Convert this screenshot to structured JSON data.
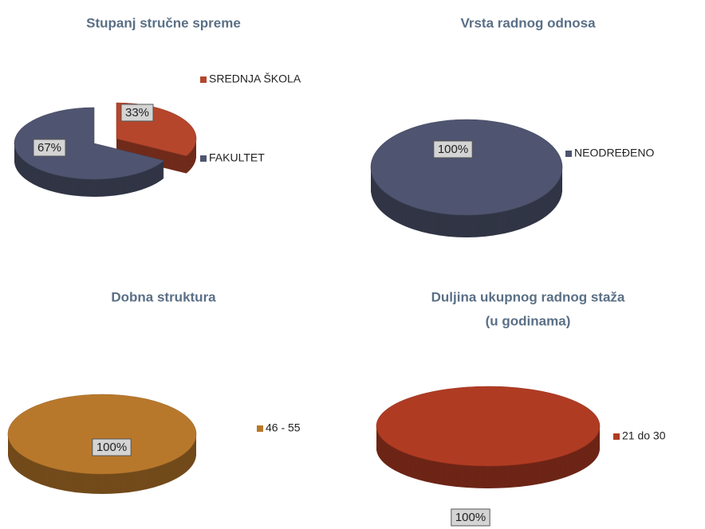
{
  "chart_data": [
    {
      "type": "pie",
      "title": "Stupanj stručne spreme",
      "categories": [
        "SREDNJA ŠKOLA",
        "FAKULTET"
      ],
      "values": [
        33,
        67
      ],
      "value_labels": [
        "33%",
        "67%"
      ],
      "colors": [
        "#b5462c",
        "#4f5570"
      ]
    },
    {
      "type": "pie",
      "title": "Vrsta radnog odnosa",
      "categories": [
        "NEODREĐENO"
      ],
      "values": [
        100
      ],
      "value_labels": [
        "100%"
      ],
      "colors": [
        "#4f5570"
      ]
    },
    {
      "type": "pie",
      "title": "Dobna struktura",
      "categories": [
        "46 - 55"
      ],
      "values": [
        100
      ],
      "value_labels": [
        "100%"
      ],
      "colors": [
        "#b8782b"
      ]
    },
    {
      "type": "pie",
      "title": "Duljina ukupnog radnog staža",
      "subtitle": "(u godinama)",
      "categories": [
        "21 do 30"
      ],
      "values": [
        100
      ],
      "value_labels": [
        "100%"
      ],
      "colors": [
        "#b03b23"
      ]
    }
  ]
}
